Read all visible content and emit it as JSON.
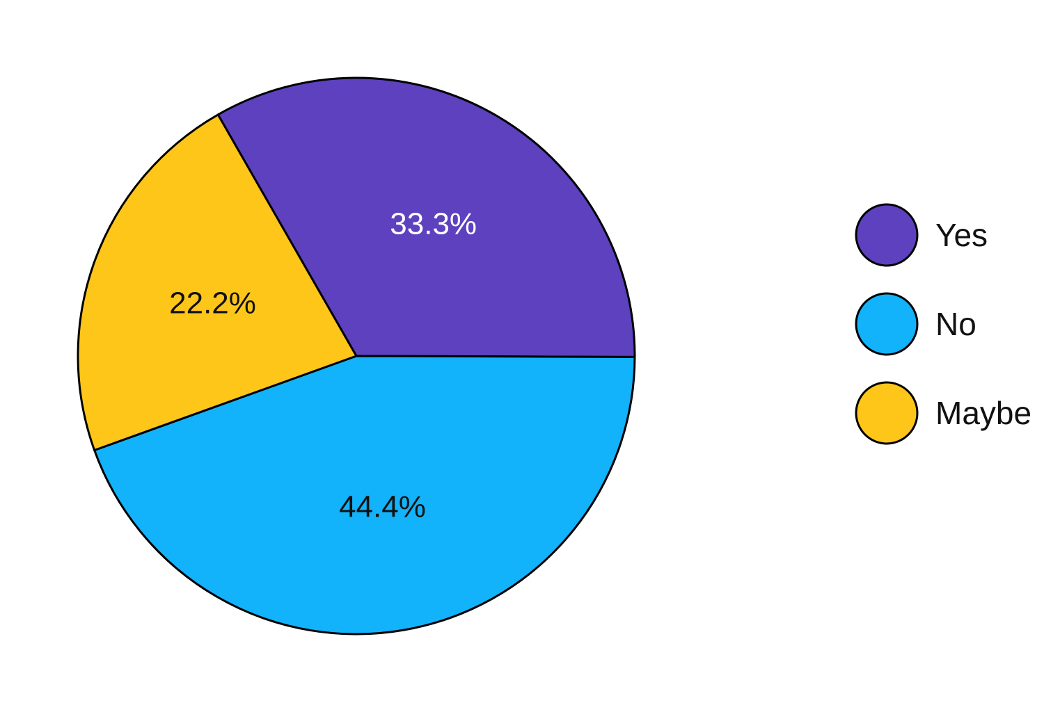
{
  "chart_data": {
    "type": "pie",
    "categories": [
      "Yes",
      "No",
      "Maybe"
    ],
    "values": [
      33.3,
      44.4,
      22.2
    ],
    "labels": [
      "33.3%",
      "44.4%",
      "22.2%"
    ],
    "colors": [
      "#5d41bf",
      "#12b3fb",
      "#ffc61a"
    ],
    "label_colors": [
      "#ffffff",
      "#111111",
      "#111111"
    ],
    "legend": {
      "placement": "right",
      "items": [
        "Yes",
        "No",
        "Maybe"
      ]
    }
  }
}
